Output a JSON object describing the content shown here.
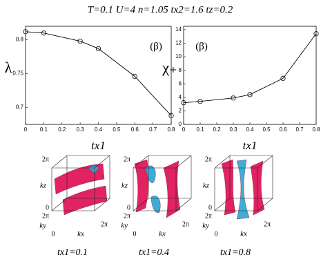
{
  "header": "T=0.1  U=4  n=1.05  tx2=1.6  tz=0.2",
  "chart_data": [
    {
      "type": "line",
      "ylabel": "λ",
      "xlabel": "tx1",
      "annotation": "(β)",
      "x": [
        0,
        0.1,
        0.3,
        0.4,
        0.6,
        0.8
      ],
      "series": [
        {
          "name": "λ",
          "color": "#000000",
          "values": [
            0.812,
            0.81,
            0.798,
            0.787,
            0.746,
            0.688
          ]
        }
      ],
      "xlim": [
        0,
        0.8
      ],
      "xticks": [
        0,
        0.1,
        0.2,
        0.3,
        0.4,
        0.5,
        0.6,
        0.7,
        0.8
      ],
      "ylim": [
        0.675,
        0.82
      ],
      "yticks": [
        0.7,
        0.75,
        0.8
      ]
    },
    {
      "type": "line",
      "ylabel": "χ₊",
      "xlabel": "tx1",
      "annotation": "(β)",
      "x": [
        0,
        0.1,
        0.3,
        0.4,
        0.6,
        0.8
      ],
      "series": [
        {
          "name": "χ₊",
          "color": "#000000",
          "values": [
            3.2,
            3.4,
            3.9,
            4.4,
            6.8,
            13.4
          ]
        }
      ],
      "xlim": [
        0,
        0.8
      ],
      "xticks": [
        0,
        0.1,
        0.2,
        0.3,
        0.4,
        0.5,
        0.6,
        0.7,
        0.8
      ],
      "ylim": [
        0,
        14.5
      ],
      "yticks": [
        0,
        2,
        4,
        6,
        8,
        10,
        12,
        14
      ]
    }
  ],
  "axis_labels": {
    "kz": "kz",
    "ky": "ky",
    "kx": "kx",
    "two_pi": "2π",
    "zero": "0"
  },
  "panels": [
    {
      "caption": "tx1=0.1"
    },
    {
      "caption": "tx1=0.4"
    },
    {
      "caption": "tx1=0.8"
    }
  ]
}
